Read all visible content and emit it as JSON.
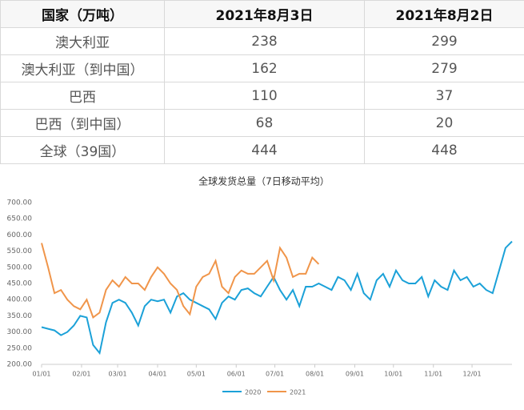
{
  "table": {
    "header": [
      "国家（万吨）",
      "2021年8月3日",
      "2021年8月2日"
    ],
    "rows": [
      [
        "澳大利亚",
        238,
        299
      ],
      [
        "澳大利亚（到中国）",
        162,
        279
      ],
      [
        "巴西",
        110,
        37
      ],
      [
        "巴西（到中国）",
        68,
        20
      ],
      [
        "全球（39国）",
        444,
        448
      ]
    ]
  },
  "chart_data": {
    "type": "line",
    "title": "全球发货总量（7日移动平均）",
    "x": [
      0,
      5,
      10,
      15,
      20,
      25,
      30,
      35,
      40,
      45,
      50,
      55,
      60,
      65,
      70,
      75,
      80,
      85,
      90,
      95,
      100,
      105,
      110,
      115,
      120,
      125,
      130,
      135,
      140,
      145,
      150,
      155,
      160,
      165,
      170,
      175,
      180,
      185,
      190,
      195,
      200,
      205,
      210,
      215,
      220,
      225,
      230,
      235,
      240,
      245,
      250,
      255,
      260,
      265,
      270,
      275,
      280,
      285,
      290,
      295,
      300,
      305,
      310,
      315,
      320,
      325,
      330,
      335,
      340,
      345,
      350,
      355,
      360,
      365
    ],
    "xlim": [
      0,
      365
    ],
    "xticks": [
      {
        "value": 0,
        "label": "01/01"
      },
      {
        "value": 31,
        "label": "02/01"
      },
      {
        "value": 59,
        "label": "03/01"
      },
      {
        "value": 90,
        "label": "04/01"
      },
      {
        "value": 120,
        "label": "05/01"
      },
      {
        "value": 151,
        "label": "06/01"
      },
      {
        "value": 181,
        "label": "07/01"
      },
      {
        "value": 212,
        "label": "08/01"
      },
      {
        "value": 243,
        "label": "09/01"
      },
      {
        "value": 273,
        "label": "10/01"
      },
      {
        "value": 304,
        "label": "11/01"
      },
      {
        "value": 334,
        "label": "12/01"
      }
    ],
    "ylim": [
      200,
      700
    ],
    "yticks": [
      {
        "value": 200,
        "label": "200.00"
      },
      {
        "value": 250,
        "label": "250.00"
      },
      {
        "value": 300,
        "label": "300.00"
      },
      {
        "value": 350,
        "label": "350.00"
      },
      {
        "value": 400,
        "label": "400.00"
      },
      {
        "value": 450,
        "label": "450.00"
      },
      {
        "value": 500,
        "label": "500.00"
      },
      {
        "value": 550,
        "label": "550.00"
      },
      {
        "value": 600,
        "label": "600.00"
      },
      {
        "value": 650,
        "label": "650.00"
      },
      {
        "value": 700,
        "label": "700.00"
      }
    ],
    "series": [
      {
        "name": "2020",
        "color": "#1ba1d8",
        "values": [
          315,
          310,
          305,
          290,
          300,
          320,
          350,
          345,
          260,
          235,
          330,
          390,
          400,
          390,
          360,
          320,
          380,
          400,
          395,
          400,
          360,
          410,
          420,
          400,
          390,
          380,
          370,
          340,
          390,
          410,
          400,
          430,
          435,
          420,
          410,
          440,
          470,
          430,
          400,
          430,
          380,
          440,
          440,
          450,
          440,
          430,
          470,
          460,
          430,
          480,
          420,
          400,
          460,
          480,
          440,
          490,
          460,
          450,
          450,
          470,
          410,
          460,
          440,
          430,
          490,
          460,
          470,
          440,
          450,
          430,
          420,
          490,
          560,
          580
        ]
      },
      {
        "name": "2021",
        "color": "#f0954a",
        "values": [
          575,
          500,
          420,
          430,
          400,
          380,
          370,
          400,
          345,
          360,
          430,
          460,
          440,
          470,
          450,
          450,
          430,
          470,
          500,
          480,
          450,
          430,
          380,
          355,
          440,
          470,
          480,
          520,
          440,
          420,
          470,
          490,
          480,
          480,
          500,
          520,
          460,
          560,
          530,
          470,
          480,
          480,
          530,
          510,
          null,
          null,
          null,
          null,
          null,
          null,
          null,
          null,
          null,
          null,
          null,
          null,
          null,
          null,
          null,
          null,
          null,
          null,
          null,
          null,
          null,
          null,
          null,
          null,
          null,
          null,
          null,
          null,
          null,
          null
        ]
      }
    ],
    "legend": "bottom"
  }
}
